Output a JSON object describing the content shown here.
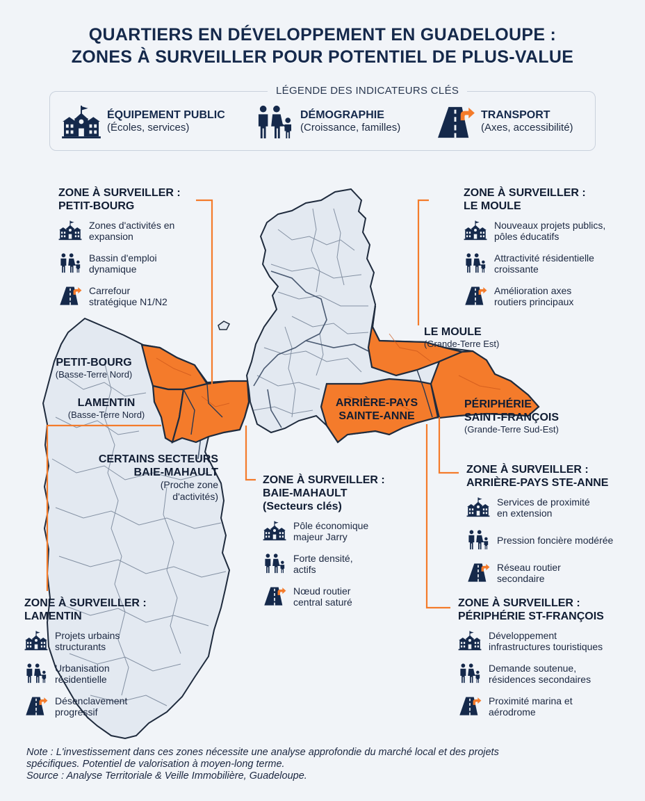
{
  "title": {
    "line1": "QUARTIERS EN DÉVELOPPEMENT EN GUADELOUPE :",
    "line2": "ZONES À SURVEILLER POUR POTENTIEL DE PLUS-VALUE"
  },
  "legend": {
    "title": "LÉGENDE DES INDICATEURS CLÉS",
    "items": [
      {
        "icon": "school-building-icon",
        "label": "ÉQUIPEMENT PUBLIC",
        "sub": "(Écoles, services)"
      },
      {
        "icon": "family-icon",
        "label": "DÉMOGRAPHIE",
        "sub": "(Croissance, familles)"
      },
      {
        "icon": "road-arrow-icon",
        "label": "TRANSPORT",
        "sub": "(Axes, accessibilité)"
      }
    ]
  },
  "colors": {
    "highlight": "#f47b2b",
    "land": "#e3e9f1",
    "outline": "#1f2b3d",
    "navy": "#15294b"
  },
  "map_labels": {
    "petit_bourg": {
      "name": "PETIT-BOURG",
      "sub": "(Basse-Terre Nord)"
    },
    "lamentin": {
      "name": "LAMENTIN",
      "sub": "(Basse-Terre Nord)"
    },
    "baie_mahault": {
      "name1": "CERTAINS SECTEURS",
      "name2": "BAIE-MAHAULT",
      "sub1": "(Proche zone",
      "sub2": "d'activités)"
    },
    "le_moule": {
      "name": "LE MOULE",
      "sub": "(Grande-Terre Est)"
    },
    "sainte_anne": {
      "name1": "ARRIÈRE-PAYS",
      "name2": "SAINTE-ANNE"
    },
    "saint_francois": {
      "name1": "PÉRIPHÉRIE",
      "name2": "SAINT-FRANÇOIS",
      "sub": "(Grande-Terre Sud-Est)"
    }
  },
  "callouts": {
    "petit_bourg": {
      "title1": "ZONE À SURVEILLER :",
      "title2": "PETIT-BOURG",
      "items": [
        {
          "l1": "Zones d'activités en",
          "l2": "expansion"
        },
        {
          "l1": "Bassin d'emploi",
          "l2": "dynamique"
        },
        {
          "l1": "Carrefour",
          "l2": "stratégique N1/N2"
        }
      ]
    },
    "le_moule": {
      "title1": "ZONE À SURVEILLER :",
      "title2": "LE MOULE",
      "items": [
        {
          "l1": "Nouveaux projets publics,",
          "l2": "pôles éducatifs"
        },
        {
          "l1": "Attractivité résidentielle",
          "l2": "croissante"
        },
        {
          "l1": "Amélioration axes",
          "l2": "routiers principaux"
        }
      ]
    },
    "baie_mahault": {
      "title1": "ZONE À SURVEILLER :",
      "title2": "BAIE-MAHAULT",
      "title3": "(Secteurs clés)",
      "items": [
        {
          "l1": "Pôle économique",
          "l2": "majeur Jarry"
        },
        {
          "l1": "Forte densité,",
          "l2": "actifs"
        },
        {
          "l1": "Nœud routier",
          "l2": "central saturé"
        }
      ]
    },
    "sainte_anne": {
      "title1": "ZONE À SURVEILLER :",
      "title2": "ARRIÈRE-PAYS STE-ANNE",
      "items": [
        {
          "l1": "Services de proximité",
          "l2": "en extension"
        },
        {
          "l1": "Pression foncière modérée",
          "l2": ""
        },
        {
          "l1": "Réseau routier",
          "l2": "secondaire"
        }
      ]
    },
    "lamentin": {
      "title1": "ZONE À SURVEILLER :",
      "title2": "LAMENTIN",
      "items": [
        {
          "l1": "Projets urbains",
          "l2": "structurants"
        },
        {
          "l1": "Urbanisation",
          "l2": "résidentielle"
        },
        {
          "l1": "Désenclavement",
          "l2": "progressif"
        }
      ]
    },
    "saint_francois": {
      "title1": "ZONE À SURVEILLER :",
      "title2": "PÉRIPHÉRIE ST-FRANÇOIS",
      "items": [
        {
          "l1": "Développement",
          "l2": "infrastructures touristiques"
        },
        {
          "l1": "Demande soutenue,",
          "l2": "résidences secondaires"
        },
        {
          "l1": "Proximité marina et",
          "l2": "aérodrome"
        }
      ]
    }
  },
  "note": {
    "line1": "Note : L'investissement dans ces zones nécessite une analyse approfondie du marché local et des projets",
    "line2": "spécifiques. Potentiel de valorisation à moyen-long terme.",
    "line3": "Source : Analyse Territoriale & Veille Immobilière, Guadeloupe."
  }
}
